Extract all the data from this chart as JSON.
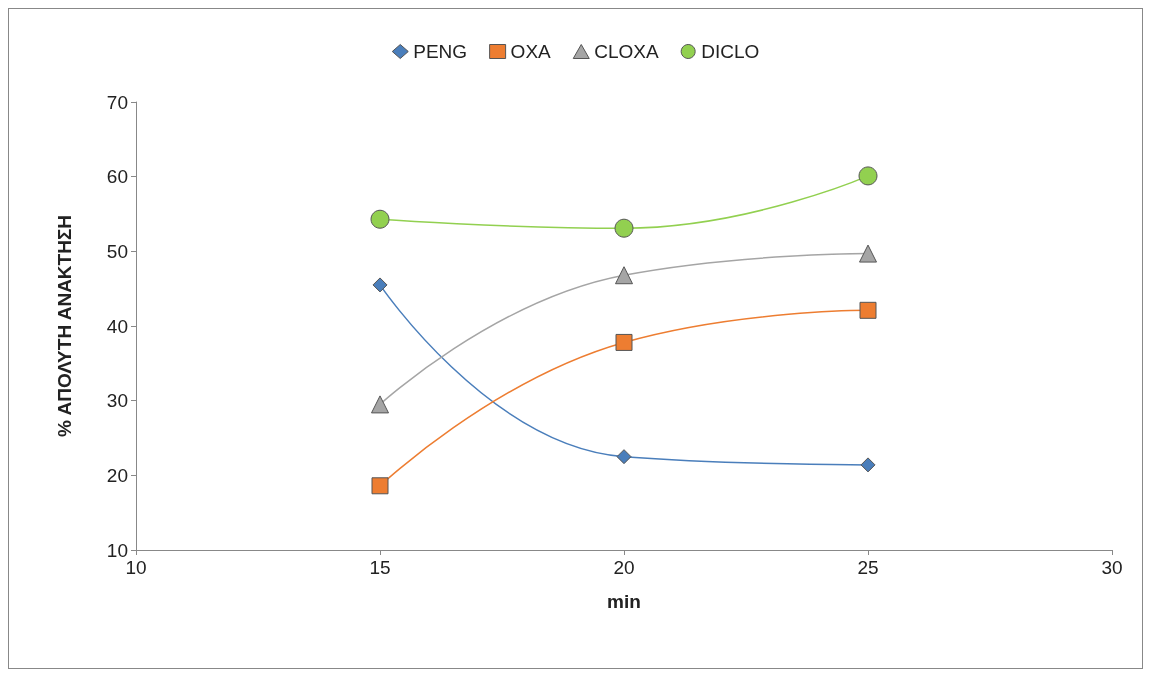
{
  "chart_data": {
    "type": "line",
    "xlabel": "min",
    "ylabel": "% ΑΠΟΛΥΤΗ ΑΝΑΚΤΗΣΗ",
    "x": [
      15,
      20,
      25
    ],
    "series": [
      {
        "name": "PENG",
        "color": "#4a7ebb",
        "marker": "diamond",
        "values": [
          45.5,
          22.5,
          21.4
        ]
      },
      {
        "name": "OXA",
        "color": "#ed7d31",
        "marker": "square",
        "values": [
          18.6,
          37.8,
          42.1
        ]
      },
      {
        "name": "CLOXA",
        "color": "#a5a5a5",
        "marker": "triangle",
        "values": [
          29.5,
          46.8,
          49.7
        ]
      },
      {
        "name": "DICLO",
        "color": "#92d050",
        "marker": "circle",
        "values": [
          54.3,
          53.1,
          60.1
        ]
      }
    ],
    "xlim": [
      10,
      30
    ],
    "xticks": [
      10,
      15,
      20,
      25,
      30
    ],
    "ylim": [
      10,
      70
    ],
    "yticks": [
      10,
      20,
      30,
      40,
      50,
      60,
      70
    ],
    "grid": false,
    "legend": "top",
    "line_style": "solid"
  }
}
